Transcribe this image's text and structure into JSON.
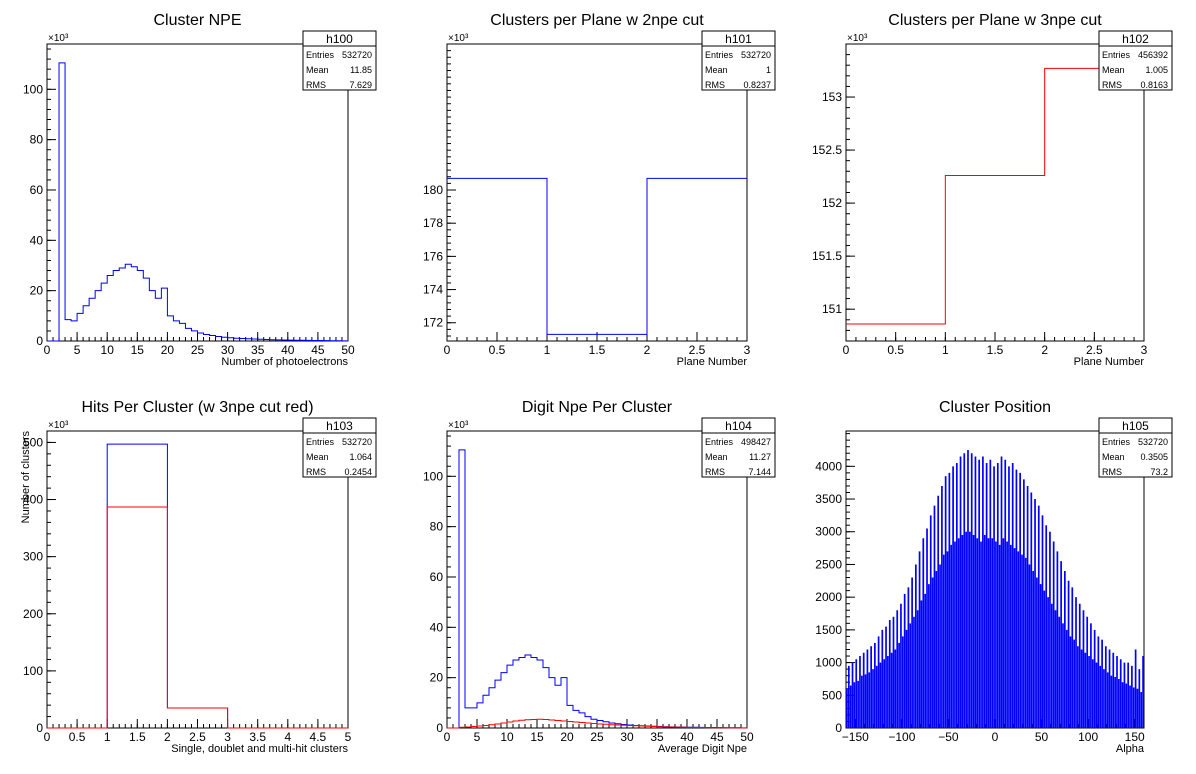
{
  "colors": {
    "blue": "#0000ff",
    "red": "#ff0000",
    "frame": "#000000"
  },
  "chart_data": [
    {
      "type": "histogram",
      "title": "Cluster NPE",
      "stats_name": "h100",
      "stats": [
        [
          "Entries",
          "532720"
        ],
        [
          "Mean",
          "11.85"
        ],
        [
          "RMS",
          "7.629"
        ]
      ],
      "xlabel": "Number of photoelectrons",
      "ylabel": "",
      "exponent": "×10³",
      "xlim": [
        0,
        50
      ],
      "ylim": [
        0,
        118
      ],
      "xticks": [
        0,
        5,
        10,
        15,
        20,
        25,
        30,
        35,
        40,
        45,
        50
      ],
      "yticks": [
        0,
        20,
        40,
        60,
        80,
        100
      ],
      "series": [
        {
          "color": "blue",
          "edges": [
            0,
            1,
            2,
            3,
            4,
            5,
            6,
            7,
            8,
            9,
            10,
            11,
            12,
            13,
            14,
            15,
            16,
            17,
            18,
            19,
            20,
            21,
            22,
            23,
            24,
            25,
            26,
            27,
            28,
            29,
            30,
            31,
            32,
            33,
            34,
            35,
            36,
            37,
            38,
            39,
            40,
            41,
            42,
            43,
            44,
            45,
            46,
            47,
            48,
            49,
            50
          ],
          "values": [
            0,
            0,
            110.5,
            8.5,
            8,
            11,
            14,
            17,
            20,
            23,
            26,
            28,
            29,
            30.5,
            29.5,
            28,
            25,
            20,
            17,
            21,
            10,
            8,
            7,
            5,
            4,
            3.2,
            2.6,
            2.2,
            1.8,
            1.5,
            1.3,
            1.1,
            1,
            0.9,
            0.8,
            0.7,
            0.6,
            0.5,
            0.45,
            0.4,
            0.35,
            0.3,
            0.28,
            0.25,
            0.2,
            0.18,
            0.15,
            0.1,
            0.08,
            0.05
          ]
        }
      ]
    },
    {
      "type": "histogram",
      "title": "Clusters per Plane w 2npe cut",
      "stats_name": "h101",
      "stats": [
        [
          "Entries",
          "532720"
        ],
        [
          "Mean",
          "1"
        ],
        [
          "RMS",
          "0.8237"
        ]
      ],
      "xlabel": "Plane Number",
      "ylabel": "",
      "exponent": "×10³",
      "xlim": [
        0,
        3
      ],
      "ylim": [
        170.9,
        188.8
      ],
      "xticks": [
        0,
        0.5,
        1,
        1.5,
        2,
        2.5,
        3
      ],
      "yticks": [
        172,
        174,
        176,
        178,
        180
      ],
      "series": [
        {
          "color": "blue",
          "edges": [
            0,
            1,
            2,
            3
          ],
          "values": [
            180.7,
            171.3,
            180.7
          ]
        }
      ]
    },
    {
      "type": "histogram",
      "title": "Clusters per Plane w 3npe cut",
      "stats_name": "h102",
      "stats": [
        [
          "Entries",
          "456392"
        ],
        [
          "Mean",
          "1.005"
        ],
        [
          "RMS",
          "0.8163"
        ]
      ],
      "xlabel": "Plane Number",
      "ylabel": "",
      "exponent": "×10³",
      "xlim": [
        0,
        3
      ],
      "ylim": [
        150.7,
        153.5
      ],
      "xticks": [
        0,
        0.5,
        1,
        1.5,
        2,
        2.5,
        3
      ],
      "yticks": [
        151,
        151.5,
        152,
        152.5,
        153
      ],
      "series": [
        {
          "color": "red",
          "edges": [
            0,
            1,
            2,
            3
          ],
          "values": [
            150.86,
            152.26,
            153.27
          ]
        }
      ]
    },
    {
      "type": "histogram",
      "title": "Hits Per Cluster (w 3npe cut red)",
      "stats_name": "h103",
      "stats": [
        [
          "Entries",
          "532720"
        ],
        [
          "Mean",
          "1.064"
        ],
        [
          "RMS",
          "0.2454"
        ]
      ],
      "xlabel": "Single, doublet and multi-hit clusters",
      "ylabel": "Number of clusters",
      "exponent": "×10³",
      "xlim": [
        0,
        5
      ],
      "ylim": [
        0,
        520
      ],
      "xticks": [
        0,
        0.5,
        1,
        1.5,
        2,
        2.5,
        3,
        3.5,
        4,
        4.5,
        5
      ],
      "yticks": [
        0,
        100,
        200,
        300,
        400,
        500
      ],
      "series": [
        {
          "color": "blue",
          "edges": [
            0,
            1,
            2,
            3,
            4,
            5
          ],
          "values": [
            0,
            497,
            35,
            0,
            0
          ]
        },
        {
          "color": "red",
          "edges": [
            0,
            1,
            2,
            3,
            4,
            5
          ],
          "values": [
            0,
            387,
            35,
            0,
            0
          ]
        }
      ]
    },
    {
      "type": "histogram",
      "title": "Digit Npe Per Cluster",
      "stats_name": "h104",
      "stats": [
        [
          "Entries",
          "498427"
        ],
        [
          "Mean",
          "11.27"
        ],
        [
          "RMS",
          "7.144"
        ]
      ],
      "xlabel": "Average Digit Npe",
      "ylabel": "",
      "exponent": "×10³",
      "xlim": [
        0,
        50
      ],
      "ylim": [
        0,
        118
      ],
      "xticks": [
        0,
        5,
        10,
        15,
        20,
        25,
        30,
        35,
        40,
        45,
        50
      ],
      "yticks": [
        0,
        20,
        40,
        60,
        80,
        100
      ],
      "series": [
        {
          "color": "blue",
          "edges": [
            0,
            1,
            2,
            3,
            4,
            5,
            6,
            7,
            8,
            9,
            10,
            11,
            12,
            13,
            14,
            15,
            16,
            17,
            18,
            19,
            20,
            21,
            22,
            23,
            24,
            25,
            26,
            27,
            28,
            29,
            30,
            31,
            32,
            33,
            34,
            35,
            36,
            37,
            38,
            39,
            40,
            41,
            42,
            43,
            44,
            45,
            46,
            47,
            48,
            49,
            50
          ],
          "values": [
            0,
            0,
            110.5,
            8,
            8,
            10,
            13,
            16,
            19,
            22,
            25,
            27,
            28,
            29,
            28,
            27,
            24,
            20,
            17,
            20,
            9,
            7,
            6,
            4.5,
            3.5,
            3,
            2.5,
            2,
            1.7,
            1.4,
            1.2,
            1,
            0.9,
            0.8,
            0.7,
            0.6,
            0.5,
            0.45,
            0.4,
            0.35,
            0.3,
            0.28,
            0.25,
            0.2,
            0.18,
            0.15,
            0.12,
            0.1,
            0.08,
            0.05
          ]
        },
        {
          "color": "red",
          "edges": [
            0,
            1,
            2,
            3,
            4,
            5,
            6,
            7,
            8,
            9,
            10,
            11,
            12,
            13,
            14,
            15,
            16,
            17,
            18,
            19,
            20,
            21,
            22,
            23,
            24,
            25,
            26,
            27,
            28,
            29,
            30,
            31,
            32,
            33,
            34,
            35,
            36,
            37,
            38,
            39,
            40,
            41,
            42,
            43,
            44,
            45,
            46,
            47,
            48,
            49,
            50
          ],
          "values": [
            0,
            0,
            0.3,
            0.4,
            0.6,
            0.8,
            1,
            1.3,
            1.6,
            2,
            2.4,
            2.8,
            3.1,
            3.3,
            3.4,
            3.5,
            3.4,
            3.2,
            3,
            2.8,
            2.6,
            2.4,
            2.2,
            2,
            1.8,
            1.6,
            1.5,
            1.3,
            1.2,
            1.1,
            1,
            0.9,
            0.8,
            0.7,
            0.6,
            0.5,
            0.45,
            0.4,
            0.35,
            0.3,
            0.25,
            0.2,
            0.18,
            0.15,
            0.12,
            0.1,
            0.08,
            0.06,
            0.04,
            0.02
          ]
        }
      ]
    },
    {
      "type": "histogram",
      "title": "Cluster Position",
      "stats_name": "h105",
      "stats": [
        [
          "Entries",
          "532720"
        ],
        [
          "Mean",
          "0.3505"
        ],
        [
          "RMS",
          "73.2"
        ]
      ],
      "xlabel": "Alpha",
      "ylabel": "",
      "exponent": "",
      "xlim": [
        -160,
        160
      ],
      "ylim": [
        0,
        4540
      ],
      "xticks": [
        -150,
        -100,
        -50,
        0,
        50,
        100,
        150
      ],
      "yticks": [
        0,
        500,
        1000,
        1500,
        2000,
        2500,
        3000,
        3500,
        4000
      ],
      "series": [
        {
          "color": "blue",
          "style": "comb",
          "bins": 160,
          "values": [
            600,
            950,
            650,
            1000,
            700,
            1050,
            720,
            1100,
            800,
            1150,
            820,
            1200,
            850,
            1250,
            900,
            1300,
            950,
            1400,
            1000,
            1500,
            1050,
            1550,
            1100,
            1650,
            1150,
            1700,
            1200,
            1800,
            1300,
            1900,
            1400,
            2050,
            1500,
            2150,
            1600,
            2300,
            1700,
            2500,
            1800,
            2700,
            1950,
            2900,
            2050,
            3050,
            2200,
            3250,
            2300,
            3400,
            2400,
            3550,
            2500,
            3700,
            2650,
            3850,
            2700,
            3900,
            2800,
            4000,
            2850,
            4050,
            2900,
            4150,
            2950,
            4200,
            3000,
            4250,
            3000,
            4200,
            2950,
            4150,
            2900,
            4100,
            2850,
            4150,
            2950,
            4050,
            2900,
            4100,
            2900,
            4000,
            2850,
            4050,
            2800,
            4150,
            2900,
            4100,
            2850,
            4000,
            2800,
            4050,
            2750,
            3950,
            2700,
            3900,
            2650,
            3800,
            2600,
            3700,
            2500,
            3600,
            2400,
            3500,
            2300,
            3400,
            2200,
            3250,
            2100,
            3100,
            2000,
            3000,
            1900,
            2850,
            1800,
            2700,
            1700,
            2550,
            1600,
            2400,
            1500,
            2250,
            1400,
            2150,
            1350,
            2000,
            1250,
            1900,
            1200,
            1800,
            1150,
            1700,
            1100,
            1600,
            1050,
            1500,
            1000,
            1400,
            950,
            1350,
            900,
            1250,
            850,
            1200,
            800,
            1150,
            780,
            1100,
            750,
            1050,
            700,
            1000,
            680,
            1000,
            650,
            950,
            620,
            1200,
            600,
            900,
            550,
            1100
          ]
        }
      ]
    }
  ]
}
